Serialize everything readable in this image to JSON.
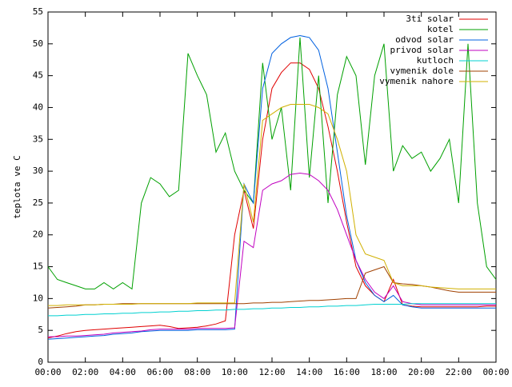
{
  "chart_data": {
    "type": "line",
    "ylabel": "teplota ve C",
    "legend": "top-right",
    "xlim": [
      0,
      24
    ],
    "ylim": [
      0,
      55
    ],
    "yticks": [
      0,
      5,
      10,
      15,
      20,
      25,
      30,
      35,
      40,
      45,
      50,
      55
    ],
    "xticks": [
      {
        "value": 0,
        "label": "00:00"
      },
      {
        "value": 2,
        "label": "02:00"
      },
      {
        "value": 4,
        "label": "04:00"
      },
      {
        "value": 6,
        "label": "06:00"
      },
      {
        "value": 8,
        "label": "08:00"
      },
      {
        "value": 10,
        "label": "10:00"
      },
      {
        "value": 12,
        "label": "12:00"
      },
      {
        "value": 14,
        "label": "14:00"
      },
      {
        "value": 16,
        "label": "16:00"
      },
      {
        "value": 18,
        "label": "18:00"
      },
      {
        "value": 20,
        "label": "20:00"
      },
      {
        "value": 22,
        "label": "22:00"
      },
      {
        "value": 24,
        "label": "00:00"
      }
    ],
    "x": [
      0,
      0.5,
      1,
      1.5,
      2,
      2.5,
      3,
      3.5,
      4,
      4.5,
      5,
      5.5,
      6,
      6.5,
      7,
      7.5,
      8,
      8.5,
      9,
      9.5,
      10,
      10.5,
      11,
      11.5,
      12,
      12.5,
      13,
      13.5,
      14,
      14.5,
      15,
      15.5,
      16,
      16.5,
      17,
      17.5,
      18,
      18.5,
      19,
      19.5,
      20,
      20.5,
      21,
      21.5,
      22,
      22.5,
      23,
      23.5,
      24
    ],
    "series": [
      {
        "name": "3ti solar",
        "color": "#e00000",
        "values": [
          3.8,
          4.1,
          4.5,
          4.8,
          5,
          5.1,
          5.2,
          5.3,
          5.4,
          5.5,
          5.6,
          5.7,
          5.8,
          5.6,
          5.3,
          5.4,
          5.5,
          5.7,
          6,
          6.5,
          20,
          27,
          21,
          35,
          43,
          45.5,
          47,
          47,
          46,
          43,
          37,
          30,
          22,
          15,
          12,
          10.5,
          9.5,
          13,
          9,
          8.8,
          8.7,
          8.7,
          8.7,
          8.7,
          8.7,
          8.7,
          8.7,
          8.8,
          8.8
        ]
      },
      {
        "name": "kotel",
        "color": "#00a000",
        "values": [
          15,
          13,
          12.5,
          12,
          11.5,
          11.5,
          12.5,
          11.5,
          12.5,
          11.5,
          25,
          29,
          28,
          26,
          27,
          48.5,
          45,
          42,
          33,
          36,
          30,
          27,
          25,
          47,
          35,
          40,
          27,
          51,
          29,
          45,
          25,
          42,
          48,
          45,
          31,
          45,
          50,
          30,
          34,
          32,
          33,
          30,
          32,
          35,
          25,
          50,
          25,
          15,
          13
        ]
      },
      {
        "name": "odvod solar",
        "color": "#0060e0",
        "values": [
          3.6,
          3.7,
          3.8,
          3.9,
          4,
          4.1,
          4.2,
          4.4,
          4.5,
          4.6,
          4.8,
          4.9,
          5,
          5,
          5,
          5,
          5.1,
          5.1,
          5.1,
          5.1,
          5.2,
          28,
          25,
          43,
          48.5,
          50,
          51,
          51.3,
          51,
          49,
          43,
          33,
          23,
          16,
          12.5,
          10.5,
          9.5,
          10.5,
          9,
          8.7,
          8.5,
          8.5,
          8.5,
          8.5,
          8.5,
          8.5,
          8.5,
          8.5,
          8.5
        ]
      },
      {
        "name": "privod solar",
        "color": "#c000c0",
        "values": [
          4,
          4,
          4.1,
          4.1,
          4.2,
          4.3,
          4.4,
          4.6,
          4.7,
          4.8,
          4.9,
          5.1,
          5.2,
          5.2,
          5.2,
          5.2,
          5.3,
          5.3,
          5.3,
          5.3,
          5.4,
          19,
          18,
          27,
          28,
          28.5,
          29.5,
          29.7,
          29.5,
          28.5,
          27,
          24,
          20,
          16,
          13,
          11,
          10,
          12,
          9.5,
          9.2,
          9,
          9,
          9,
          9,
          9,
          9,
          9,
          9,
          9
        ]
      },
      {
        "name": "kutloch",
        "color": "#00d0d0",
        "values": [
          7.3,
          7.3,
          7.4,
          7.4,
          7.5,
          7.5,
          7.6,
          7.6,
          7.7,
          7.7,
          7.8,
          7.8,
          7.9,
          7.9,
          8,
          8,
          8.1,
          8.1,
          8.2,
          8.2,
          8.3,
          8.3,
          8.4,
          8.4,
          8.5,
          8.5,
          8.6,
          8.6,
          8.7,
          8.7,
          8.8,
          8.8,
          8.9,
          8.9,
          9,
          9.1,
          9.1,
          9.1,
          9.1,
          9.2,
          9.2,
          9.2,
          9.2,
          9.2,
          9.2,
          9.2,
          9.2,
          9.2,
          9.2
        ]
      },
      {
        "name": "vymenik dole",
        "color": "#a04000",
        "values": [
          8.5,
          8.6,
          8.7,
          8.8,
          9,
          9,
          9.1,
          9.1,
          9.2,
          9.2,
          9.2,
          9.2,
          9.2,
          9.2,
          9.2,
          9.2,
          9.2,
          9.2,
          9.2,
          9.2,
          9.2,
          9.2,
          9.3,
          9.3,
          9.4,
          9.4,
          9.5,
          9.6,
          9.7,
          9.7,
          9.8,
          9.9,
          10,
          10,
          14,
          14.5,
          15,
          12.5,
          12.3,
          12.2,
          12,
          11.8,
          11.5,
          11.2,
          11,
          11,
          11,
          11,
          11
        ]
      },
      {
        "name": "vymenik nahore",
        "color": "#d0b000",
        "values": [
          8.9,
          8.9,
          9,
          9,
          9,
          9,
          9.1,
          9.1,
          9.1,
          9.1,
          9.2,
          9.2,
          9.2,
          9.2,
          9.2,
          9.2,
          9.3,
          9.3,
          9.3,
          9.3,
          9.3,
          28,
          22,
          38,
          39,
          40,
          40.5,
          40.5,
          40.5,
          40,
          39,
          35,
          30,
          20,
          17,
          16.5,
          16,
          12.5,
          12,
          12,
          12,
          11.8,
          11.7,
          11.6,
          11.5,
          11.5,
          11.5,
          11.5,
          11.5
        ]
      }
    ]
  }
}
